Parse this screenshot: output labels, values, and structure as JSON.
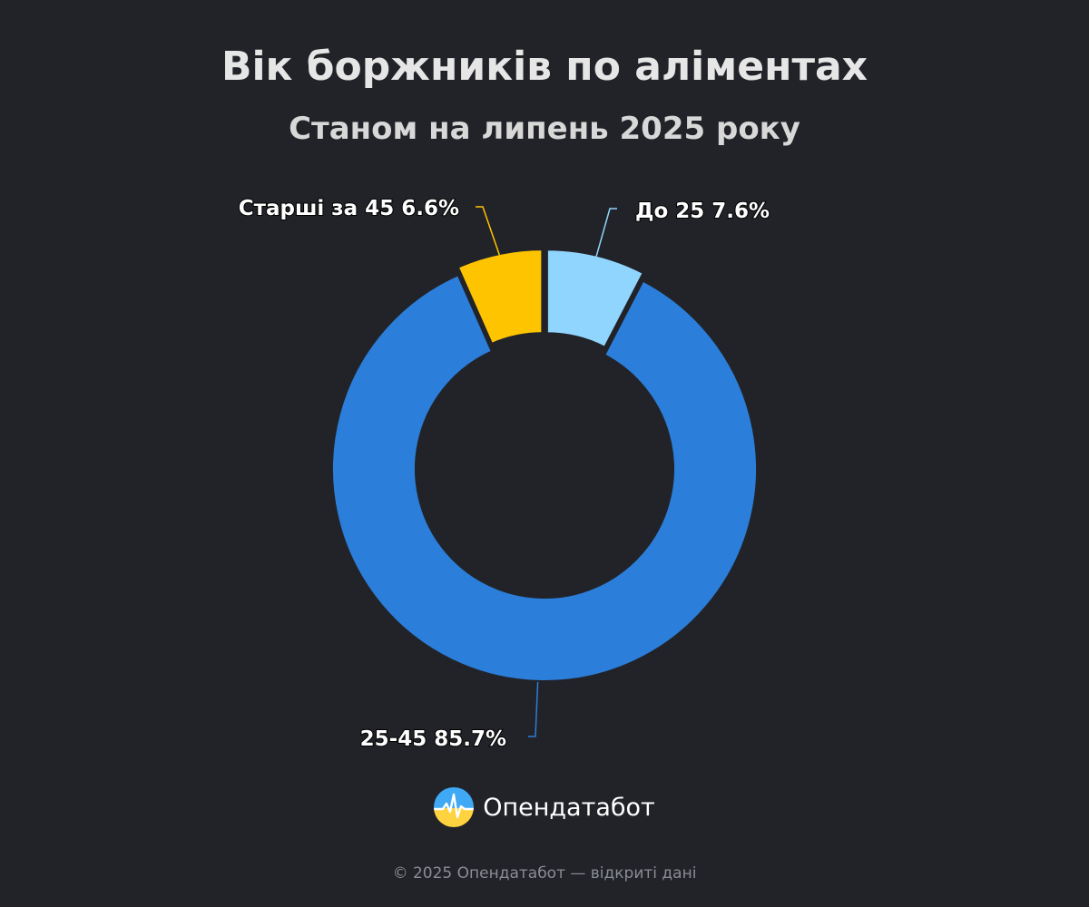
{
  "title": "Вік боржників по аліментах",
  "subtitle": "Станом на липень 2025 року",
  "chart_data": {
    "type": "pie",
    "donut": true,
    "title": "Вік боржників по аліментах",
    "subtitle": "Станом на липень 2025 року",
    "slices": [
      {
        "label": "До 25",
        "value": 7.6,
        "value_label": "7.6%",
        "color": "#90d5fd"
      },
      {
        "label": "25-45",
        "value": 85.7,
        "value_label": "85.7%",
        "color": "#2b7ed9"
      },
      {
        "label": "Старші за 45",
        "value": 6.6,
        "value_label": "6.6%",
        "color": "#ffc400"
      }
    ],
    "label_color": "#ffffff",
    "background": "#212328"
  },
  "brand": {
    "name": "Опендатабот",
    "logo_icon": "opendatabot-logo-icon"
  },
  "footer": "© 2025 Опендатабот — відкриті дані"
}
